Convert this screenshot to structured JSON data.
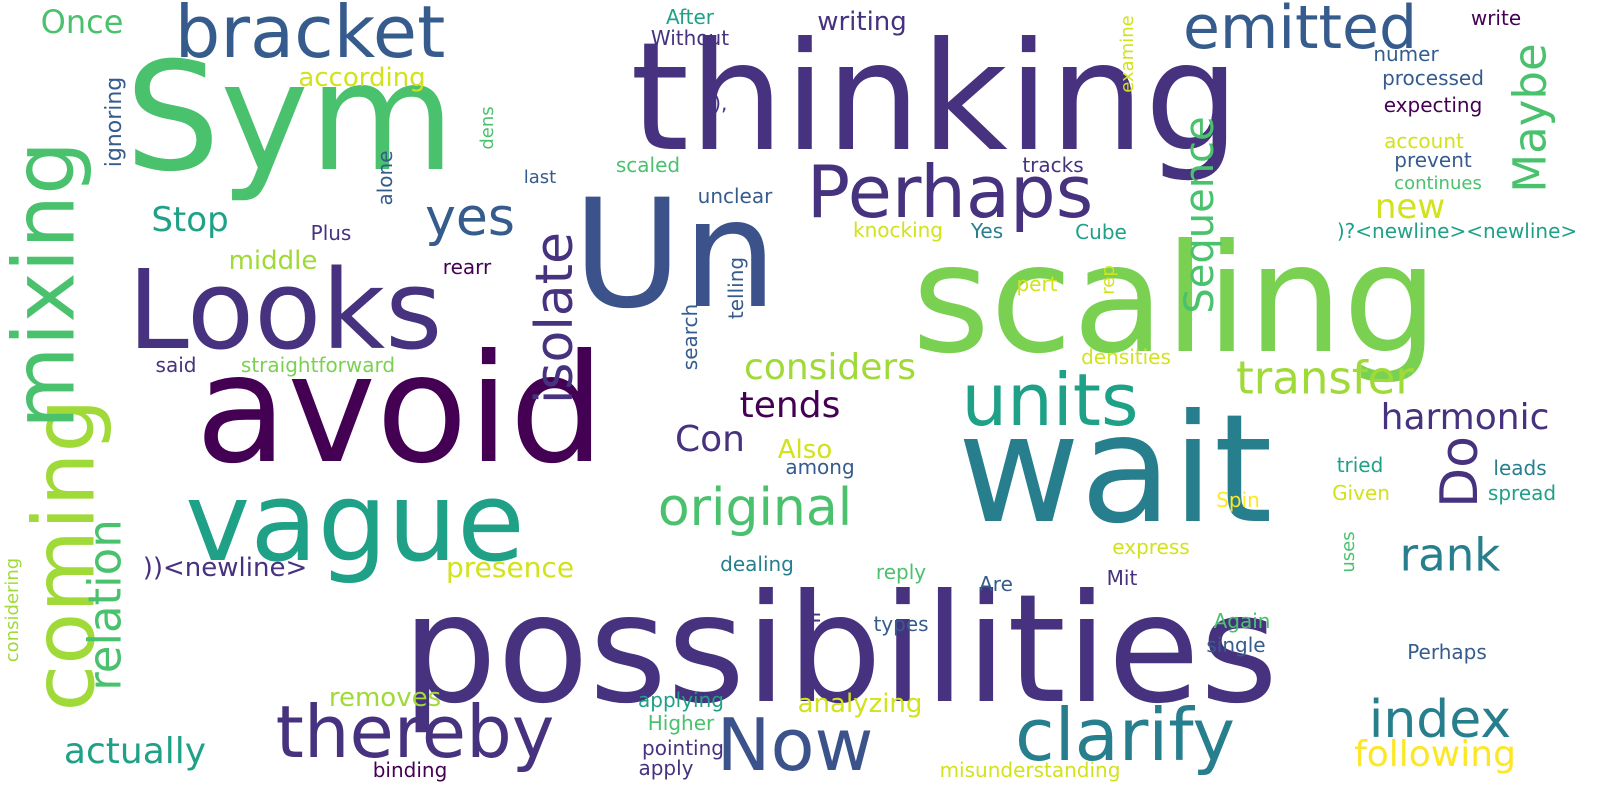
{
  "palette": {
    "p_dark": "#440154",
    "p_indigo": "#46327e",
    "p_blue": "#365c8d",
    "p_teal": "#277f8e",
    "p_sea": "#1fa187",
    "p_green": "#4ac16d",
    "p_lime": "#a0da39",
    "p_yellow": "#fde725"
  },
  "words": [
    {
      "text": "possibilities",
      "color": "#46327e",
      "vertical": false
    },
    {
      "text": "thinking",
      "color": "#46327e",
      "vertical": false
    },
    {
      "text": "Sym",
      "color": "#4ac16d",
      "vertical": false
    },
    {
      "text": "Un",
      "color": "#3b528b",
      "vertical": false
    },
    {
      "text": "scaling",
      "color": "#7ad151",
      "vertical": false
    },
    {
      "text": "avoid",
      "color": "#440154",
      "vertical": false
    },
    {
      "text": "wait",
      "color": "#277f8e",
      "vertical": false
    },
    {
      "text": "Looks",
      "color": "#46327e",
      "vertical": false
    },
    {
      "text": "vague",
      "color": "#1fa187",
      "vertical": false
    },
    {
      "text": "coming",
      "color": "#a0da39",
      "vertical": true
    },
    {
      "text": "mixing",
      "color": "#4ac16d",
      "vertical": true
    },
    {
      "text": "bracket",
      "color": "#365c8d",
      "vertical": false
    },
    {
      "text": "thereby",
      "color": "#46327e",
      "vertical": false
    },
    {
      "text": "clarify",
      "color": "#277f8e",
      "vertical": false
    },
    {
      "text": "units",
      "color": "#1fa187",
      "vertical": false
    },
    {
      "text": "Perhaps",
      "color": "#46327e",
      "vertical": false
    },
    {
      "text": "emitted",
      "color": "#365c8d",
      "vertical": false
    },
    {
      "text": "Now",
      "color": "#3b528b",
      "vertical": false
    },
    {
      "text": "original",
      "color": "#4ac16d",
      "vertical": false
    },
    {
      "text": "isolate",
      "color": "#46327e",
      "vertical": true
    },
    {
      "text": "transfer",
      "color": "#a0da39",
      "vertical": false
    },
    {
      "text": "index",
      "color": "#277f8e",
      "vertical": false
    },
    {
      "text": "Do",
      "color": "#46327e",
      "vertical": true
    },
    {
      "text": "Maybe",
      "color": "#4ac16d",
      "vertical": true
    },
    {
      "text": "rank",
      "color": "#277f8e",
      "vertical": false
    },
    {
      "text": "relation",
      "color": "#4ac16d",
      "vertical": true
    },
    {
      "text": "actually",
      "color": "#1fa187",
      "vertical": false
    },
    {
      "text": "yes",
      "color": "#365c8d",
      "vertical": false
    },
    {
      "text": "Sequence",
      "color": "#4ac16d",
      "vertical": true
    },
    {
      "text": "considers",
      "color": "#a0da39",
      "vertical": false
    },
    {
      "text": "harmonic",
      "color": "#46327e",
      "vertical": false
    },
    {
      "text": "following",
      "color": "#fde725",
      "vertical": false
    },
    {
      "text": "tends",
      "color": "#440154",
      "vertical": false
    },
    {
      "text": "Con",
      "color": "#46327e",
      "vertical": false
    },
    {
      "text": "Stop",
      "color": "#1fa187",
      "vertical": false
    },
    {
      "text": "new",
      "color": "#d2e21b",
      "vertical": false
    },
    {
      "text": "Once",
      "color": "#4ac16d",
      "vertical": false
    },
    {
      "text": "according",
      "color": "#d2e21b",
      "vertical": false
    },
    {
      "text": "writing",
      "color": "#46327e",
      "vertical": false
    },
    {
      "text": "presence",
      "color": "#d2e21b",
      "vertical": false
    },
    {
      "text": "removes",
      "color": "#a0da39",
      "vertical": false
    },
    {
      "text": "analyzing",
      "color": "#d2e21b",
      "vertical": false
    },
    {
      "text": "middle",
      "color": "#a0da39",
      "vertical": false
    },
    {
      "text": "Also",
      "color": "#d2e21b",
      "vertical": false
    },
    {
      "text": "))<newline>",
      "color": "#46327e",
      "vertical": false
    },
    {
      "text": "ignoring",
      "color": "#365c8d",
      "vertical": true
    },
    {
      "text": "straightforward",
      "color": "#7ad151",
      "vertical": false
    },
    {
      "text": "After",
      "color": "#1fa187",
      "vertical": false
    },
    {
      "text": "Without",
      "color": "#46327e",
      "vertical": false
    },
    {
      "text": "?),",
      "color": "#46327e",
      "vertical": false
    },
    {
      "text": "write",
      "color": "#440154",
      "vertical": false
    },
    {
      "text": "numer",
      "color": "#365c8d",
      "vertical": false
    },
    {
      "text": "processed",
      "color": "#365c8d",
      "vertical": false
    },
    {
      "text": "expecting",
      "color": "#440154",
      "vertical": false
    },
    {
      "text": "account",
      "color": "#d2e21b",
      "vertical": false
    },
    {
      "text": "prevent",
      "color": "#365c8d",
      "vertical": false
    },
    {
      "text": "continues",
      "color": "#4ac16d",
      "vertical": false
    },
    {
      "text": ")?<newline><newline>",
      "color": "#1fa187",
      "vertical": false
    },
    {
      "text": "examine",
      "color": "#d2e21b",
      "vertical": true
    },
    {
      "text": "dens",
      "color": "#4ac16d",
      "vertical": true
    },
    {
      "text": "alone",
      "color": "#365c8d",
      "vertical": true
    },
    {
      "text": "scaled",
      "color": "#4ac16d",
      "vertical": false
    },
    {
      "text": "tracks",
      "color": "#46327e",
      "vertical": false
    },
    {
      "text": "last",
      "color": "#365c8d",
      "vertical": false
    },
    {
      "text": "unclear",
      "color": "#365c8d",
      "vertical": false
    },
    {
      "text": "knocking",
      "color": "#d2e21b",
      "vertical": false
    },
    {
      "text": "Yes",
      "color": "#277f8e",
      "vertical": false
    },
    {
      "text": "Cube",
      "color": "#1fa187",
      "vertical": false
    },
    {
      "text": "Plus",
      "color": "#46327e",
      "vertical": false
    },
    {
      "text": "rearr",
      "color": "#440154",
      "vertical": false
    },
    {
      "text": "telling",
      "color": "#365c8d",
      "vertical": true
    },
    {
      "text": "search",
      "color": "#365c8d",
      "vertical": true
    },
    {
      "text": "pert",
      "color": "#d2e21b",
      "vertical": false
    },
    {
      "text": "rep",
      "color": "#d2e21b",
      "vertical": true
    },
    {
      "text": "said",
      "color": "#46327e",
      "vertical": false
    },
    {
      "text": "densities",
      "color": "#d2e21b",
      "vertical": false
    },
    {
      "text": "among",
      "color": "#365c8d",
      "vertical": false
    },
    {
      "text": "tried",
      "color": "#1fa187",
      "vertical": false
    },
    {
      "text": "leads",
      "color": "#277f8e",
      "vertical": false
    },
    {
      "text": "Given",
      "color": "#d2e21b",
      "vertical": false
    },
    {
      "text": "spread",
      "color": "#1fa187",
      "vertical": false
    },
    {
      "text": "Spin",
      "color": "#fde725",
      "vertical": false
    },
    {
      "text": "express",
      "color": "#d2e21b",
      "vertical": false
    },
    {
      "text": "uses",
      "color": "#4ac16d",
      "vertical": true
    },
    {
      "text": "dealing",
      "color": "#277f8e",
      "vertical": false
    },
    {
      "text": "reply",
      "color": "#4ac16d",
      "vertical": false
    },
    {
      "text": "Mit",
      "color": "#46327e",
      "vertical": false
    },
    {
      "text": "Are",
      "color": "#365c8d",
      "vertical": false
    },
    {
      "text": "If",
      "color": "#46327e",
      "vertical": true
    },
    {
      "text": "types",
      "color": "#365c8d",
      "vertical": false
    },
    {
      "text": "Again",
      "color": "#4ac16d",
      "vertical": false
    },
    {
      "text": "single",
      "color": "#365c8d",
      "vertical": false
    },
    {
      "text": "Perhaps",
      "color": "#365c8d",
      "vertical": false
    },
    {
      "text": "considering",
      "color": "#a0da39",
      "vertical": true
    },
    {
      "text": "applying",
      "color": "#1fa187",
      "vertical": false
    },
    {
      "text": "Higher",
      "color": "#4ac16d",
      "vertical": false
    },
    {
      "text": "pointing",
      "color": "#46327e",
      "vertical": false
    },
    {
      "text": "apply",
      "color": "#46327e",
      "vertical": false
    },
    {
      "text": "binding",
      "color": "#440154",
      "vertical": false
    },
    {
      "text": "misunderstanding",
      "color": "#d2e21b",
      "vertical": false
    }
  ]
}
